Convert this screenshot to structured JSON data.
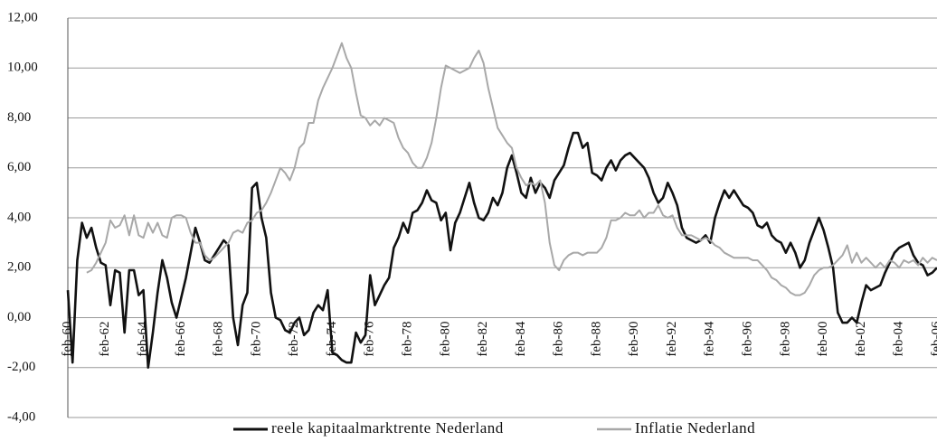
{
  "chart_data": {
    "type": "line",
    "categories": [
      "feb-60",
      null,
      null,
      null,
      null,
      null,
      null,
      null,
      "feb-62",
      null,
      null,
      null,
      null,
      null,
      null,
      null,
      "feb-64",
      null,
      null,
      null,
      null,
      null,
      null,
      null,
      "feb-66",
      null,
      null,
      null,
      null,
      null,
      null,
      null,
      "feb-68",
      null,
      null,
      null,
      null,
      null,
      null,
      null,
      "feb-70",
      null,
      null,
      null,
      null,
      null,
      null,
      null,
      "feb-72",
      null,
      null,
      null,
      null,
      null,
      null,
      null,
      "feb-74",
      null,
      null,
      null,
      null,
      null,
      null,
      null,
      "feb-76",
      null,
      null,
      null,
      null,
      null,
      null,
      null,
      "feb-78",
      null,
      null,
      null,
      null,
      null,
      null,
      null,
      "feb-80",
      null,
      null,
      null,
      null,
      null,
      null,
      null,
      "feb-82",
      null,
      null,
      null,
      null,
      null,
      null,
      null,
      "feb-84",
      null,
      null,
      null,
      null,
      null,
      null,
      null,
      "feb-86",
      null,
      null,
      null,
      null,
      null,
      null,
      null,
      "feb-88",
      null,
      null,
      null,
      null,
      null,
      null,
      null,
      "feb-90",
      null,
      null,
      null,
      null,
      null,
      null,
      null,
      "feb-92",
      null,
      null,
      null,
      null,
      null,
      null,
      null,
      "feb-94",
      null,
      null,
      null,
      null,
      null,
      null,
      null,
      "feb-96",
      null,
      null,
      null,
      null,
      null,
      null,
      null,
      "feb-98",
      null,
      null,
      null,
      null,
      null,
      null,
      null,
      "feb-00",
      null,
      null,
      null,
      null,
      null,
      null,
      null,
      "feb-02",
      null,
      null,
      null,
      null,
      null,
      null,
      null,
      "feb-04",
      null,
      null,
      null,
      null,
      null,
      null,
      null,
      "feb-06"
    ],
    "series": [
      {
        "name": "reele kapitaalmarktrente Nederland",
        "color": "#111111",
        "values": [
          1.1,
          -1.8,
          2.3,
          3.8,
          3.2,
          3.6,
          2.8,
          2.2,
          2.1,
          0.5,
          1.9,
          1.8,
          -0.6,
          1.9,
          1.9,
          0.9,
          1.1,
          -2.0,
          -0.6,
          1.0,
          2.3,
          1.6,
          0.6,
          0.0,
          0.8,
          1.6,
          2.6,
          3.6,
          3.0,
          2.3,
          2.2,
          2.5,
          2.8,
          3.1,
          2.9,
          0.0,
          -1.1,
          0.5,
          1.0,
          5.2,
          5.4,
          4.0,
          3.2,
          1.0,
          0.0,
          -0.1,
          -0.5,
          -0.6,
          -0.2,
          0.0,
          -0.7,
          -0.5,
          0.2,
          0.5,
          0.3,
          1.1,
          -1.4,
          -1.5,
          -1.7,
          -1.8,
          -1.8,
          -0.6,
          -1.0,
          -0.7,
          1.7,
          0.5,
          0.9,
          1.3,
          1.6,
          2.8,
          3.2,
          3.8,
          3.4,
          4.2,
          4.3,
          4.6,
          5.1,
          4.7,
          4.6,
          3.9,
          4.2,
          2.7,
          3.8,
          4.2,
          4.8,
          5.4,
          4.6,
          4.0,
          3.9,
          4.2,
          4.8,
          4.5,
          5.0,
          6.0,
          6.5,
          5.8,
          5.0,
          4.8,
          5.6,
          5.0,
          5.4,
          5.2,
          4.8,
          5.5,
          5.8,
          6.1,
          6.8,
          7.4,
          7.4,
          6.8,
          7.0,
          5.8,
          5.7,
          5.5,
          6.0,
          6.3,
          5.9,
          6.3,
          6.5,
          6.6,
          6.4,
          6.2,
          6.0,
          5.6,
          5.0,
          4.6,
          4.8,
          5.4,
          5.0,
          4.5,
          3.6,
          3.2,
          3.1,
          3.0,
          3.1,
          3.3,
          3.0,
          4.0,
          4.6,
          5.1,
          4.8,
          5.1,
          4.8,
          4.5,
          4.4,
          4.2,
          3.7,
          3.6,
          3.8,
          3.3,
          3.1,
          3.0,
          2.6,
          3.0,
          2.6,
          2.0,
          2.3,
          3.0,
          3.5,
          4.0,
          3.5,
          2.8,
          2.0,
          0.2,
          -0.2,
          -0.2,
          0.0,
          -0.2,
          0.6,
          1.3,
          1.1,
          1.2,
          1.3,
          1.8,
          2.2,
          2.6,
          2.8,
          2.9,
          3.0,
          2.5,
          2.2,
          2.1,
          1.7,
          1.8,
          2.0
        ]
      },
      {
        "name": "Inflatie Nederland",
        "color": "#a8a8a8",
        "values": [
          null,
          null,
          null,
          null,
          1.8,
          1.9,
          2.2,
          2.6,
          3.0,
          3.9,
          3.6,
          3.7,
          4.1,
          3.3,
          4.1,
          3.3,
          3.2,
          3.8,
          3.4,
          3.8,
          3.3,
          3.2,
          4.0,
          4.1,
          4.1,
          4.0,
          3.4,
          3.0,
          3.0,
          2.5,
          2.3,
          2.4,
          2.6,
          2.8,
          3.0,
          3.4,
          3.5,
          3.4,
          3.8,
          3.9,
          4.2,
          4.3,
          4.6,
          5.0,
          5.5,
          6.0,
          5.8,
          5.5,
          6.0,
          6.8,
          7.0,
          7.8,
          7.8,
          8.7,
          9.2,
          9.6,
          10.0,
          10.5,
          11.0,
          10.4,
          10.0,
          9.0,
          8.1,
          8.0,
          7.7,
          7.9,
          7.7,
          8.0,
          7.9,
          7.8,
          7.2,
          6.8,
          6.6,
          6.2,
          6.0,
          6.0,
          6.4,
          7.0,
          8.0,
          9.2,
          10.1,
          10.0,
          9.9,
          9.8,
          9.9,
          10.0,
          10.4,
          10.7,
          10.2,
          9.2,
          8.4,
          7.6,
          7.3,
          7.0,
          6.8,
          6.0,
          5.6,
          5.3,
          5.4,
          5.3,
          5.5,
          4.6,
          3.0,
          2.1,
          1.9,
          2.3,
          2.5,
          2.6,
          2.6,
          2.5,
          2.6,
          2.6,
          2.6,
          2.8,
          3.2,
          3.9,
          3.9,
          4.0,
          4.2,
          4.1,
          4.1,
          4.3,
          4.0,
          4.2,
          4.2,
          4.5,
          4.1,
          4.0,
          4.1,
          3.6,
          3.3,
          3.3,
          3.3,
          3.2,
          3.1,
          3.2,
          3.1,
          2.9,
          2.8,
          2.6,
          2.5,
          2.4,
          2.4,
          2.4,
          2.4,
          2.3,
          2.3,
          2.1,
          1.9,
          1.6,
          1.5,
          1.3,
          1.2,
          1.0,
          0.9,
          0.9,
          1.0,
          1.3,
          1.7,
          1.9,
          2.0,
          2.0,
          2.1,
          2.3,
          2.5,
          2.9,
          2.2,
          2.6,
          2.2,
          2.4,
          2.2,
          2.0,
          2.2,
          2.0,
          2.3,
          2.2,
          2.0,
          2.3,
          2.2,
          2.3,
          2.1,
          2.4,
          2.2,
          2.4,
          2.3
        ]
      }
    ],
    "ylim": [
      -4,
      12
    ],
    "yticks": [
      {
        "value": -4,
        "label": "-4,00"
      },
      {
        "value": -2,
        "label": "-2,00"
      },
      {
        "value": 0,
        "label": "0,00"
      },
      {
        "value": 2,
        "label": "2,00"
      },
      {
        "value": 4,
        "label": "4,00"
      },
      {
        "value": 6,
        "label": "6,00"
      },
      {
        "value": 8,
        "label": "8,00"
      },
      {
        "value": 10,
        "label": "10,00"
      },
      {
        "value": 12,
        "label": "12,00"
      }
    ],
    "grid": true
  }
}
